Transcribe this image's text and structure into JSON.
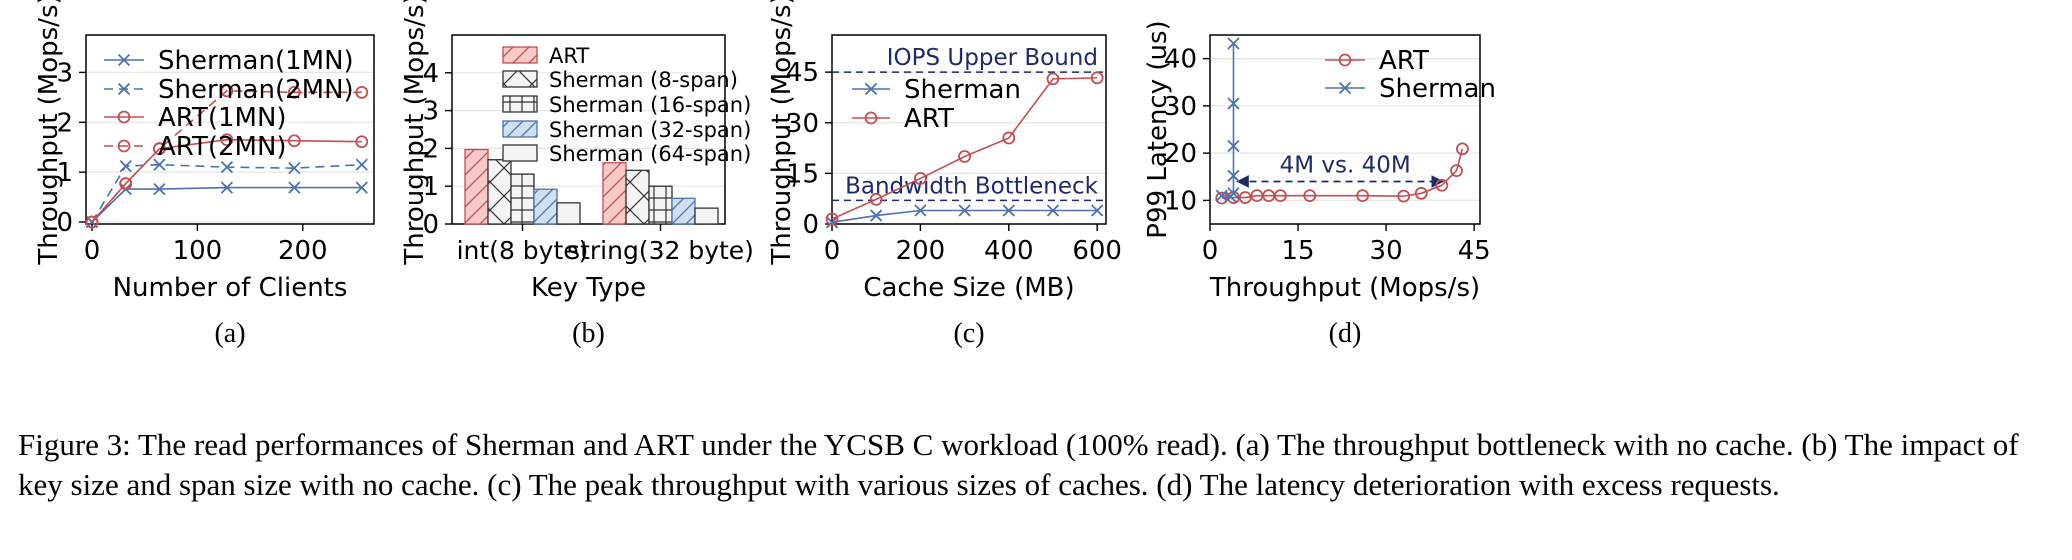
{
  "caption": "Figure 3: The read performances of Sherman and ART under the YCSB C workload (100% read). (a) The throughput bottleneck with no cache. (b) The impact of key size and span size with no cache. (c) The peak throughput with various sizes of caches. (d) The latency deterioration with excess requests.",
  "colors": {
    "blue": "#4C72B0",
    "red": "#C44E52",
    "navy": "#1f2a6b",
    "gridline": "#e6e6e6"
  },
  "chart_data": [
    {
      "id": "a",
      "type": "line",
      "sublabel": "(a)",
      "xlabel": "Number of Clients",
      "ylabel": "Throughput (Mops/s)",
      "xlim": [
        0,
        260
      ],
      "ylim": [
        0,
        3.75
      ],
      "xticks": [
        0,
        100,
        200
      ],
      "yticks": [
        0,
        1,
        2,
        3
      ],
      "legend_position": "top-left",
      "series": [
        {
          "name": "Sherman(1MN)",
          "color": "#4C72B0",
          "dash": false,
          "marker": "x",
          "x": [
            0,
            32,
            64,
            128,
            192,
            256
          ],
          "y": [
            0,
            0.66,
            0.66,
            0.69,
            0.69,
            0.69
          ]
        },
        {
          "name": "Sherman(2MN)",
          "color": "#4C72B0",
          "dash": true,
          "marker": "x",
          "x": [
            0,
            32,
            64,
            128,
            192,
            256
          ],
          "y": [
            0,
            1.12,
            1.15,
            1.1,
            1.08,
            1.15
          ]
        },
        {
          "name": "ART(1MN)",
          "color": "#C44E52",
          "dash": false,
          "marker": "o",
          "x": [
            0,
            32,
            64,
            128,
            192,
            256
          ],
          "y": [
            0,
            0.77,
            1.47,
            1.65,
            1.63,
            1.61
          ]
        },
        {
          "name": "ART(2MN)",
          "color": "#C44E52",
          "dash": true,
          "marker": "o",
          "x": [
            0,
            32,
            64,
            128,
            192,
            256
          ],
          "y": [
            0,
            0.77,
            1.47,
            2.63,
            2.6,
            2.6
          ]
        }
      ]
    },
    {
      "id": "b",
      "type": "bar",
      "sublabel": "(b)",
      "xlabel": "Key Type",
      "ylabel": "Throughput (Mops/s)",
      "ylim": [
        0,
        5
      ],
      "yticks": [
        0,
        1,
        2,
        3,
        4
      ],
      "categories": [
        "int(8 byte)",
        "string(32 byte)"
      ],
      "legend_position": "top-center",
      "series": [
        {
          "name": "ART",
          "fill": "#f6c9c8",
          "stroke": "#c44e52",
          "pattern": "diag",
          "values": [
            1.97,
            1.62
          ]
        },
        {
          "name": "Sherman (8-span)",
          "fill": "#f4f4f4",
          "stroke": "#333333",
          "pattern": "cross",
          "values": [
            1.7,
            1.42
          ]
        },
        {
          "name": "Sherman (16-span)",
          "fill": "#f4f4f4",
          "stroke": "#333333",
          "pattern": "grid",
          "values": [
            1.32,
            1.0
          ]
        },
        {
          "name": "Sherman (32-span)",
          "fill": "#cfe0f0",
          "stroke": "#4C72B0",
          "pattern": "diag",
          "values": [
            0.92,
            0.68
          ]
        },
        {
          "name": "Sherman (64-span)",
          "fill": "#f4f4f4",
          "stroke": "#333333",
          "pattern": "none",
          "values": [
            0.56,
            0.42
          ]
        }
      ]
    },
    {
      "id": "c",
      "type": "line",
      "sublabel": "(c)",
      "xlabel": "Cache Size (MB)",
      "ylabel": "Throughput (Mops/s)",
      "xlim": [
        0,
        620
      ],
      "ylim": [
        0,
        56
      ],
      "xticks": [
        0,
        200,
        400,
        600
      ],
      "yticks": [
        0,
        15,
        30,
        45
      ],
      "legend_position": "upper-left",
      "hlines": [
        {
          "y": 45,
          "label": "IOPS Upper Bound",
          "color": "#1f2a6b"
        },
        {
          "y": 7,
          "label": "Bandwidth Bottleneck",
          "color": "#1f2a6b"
        }
      ],
      "series": [
        {
          "name": "Sherman",
          "color": "#4C72B0",
          "marker": "x",
          "x": [
            0,
            100,
            200,
            300,
            400,
            500,
            600
          ],
          "y": [
            0.5,
            2.5,
            4.0,
            4.0,
            4.0,
            4.0,
            4.0
          ]
        },
        {
          "name": "ART",
          "color": "#C44E52",
          "marker": "o",
          "x": [
            0,
            100,
            200,
            300,
            400,
            500,
            600
          ],
          "y": [
            1.5,
            7.3,
            13.5,
            20.0,
            25.5,
            43.0,
            43.3
          ]
        }
      ]
    },
    {
      "id": "d",
      "type": "line",
      "sublabel": "(d)",
      "xlabel": "Throughput (Mops/s)",
      "ylabel": "P99 Latency (us)",
      "xlim": [
        0,
        46
      ],
      "ylim": [
        5,
        45
      ],
      "xticks": [
        0,
        15,
        30,
        45
      ],
      "yticks": [
        10,
        20,
        30,
        40
      ],
      "legend_position": "top-right",
      "annotation": {
        "text": "4M vs. 40M",
        "x_from": 4,
        "x_to": 40,
        "y": 14,
        "color": "#1f2a6b"
      },
      "series": [
        {
          "name": "ART",
          "color": "#C44E52",
          "marker": "o",
          "x": [
            2,
            4,
            6,
            8,
            10,
            12,
            17,
            26,
            33,
            36,
            39.5,
            42,
            43
          ],
          "y": [
            10.5,
            10.6,
            10.6,
            11,
            11,
            11,
            11,
            11,
            10.9,
            11.5,
            13.2,
            16.3,
            20.9
          ]
        },
        {
          "name": "Sherman",
          "color": "#4C72B0",
          "marker": "x",
          "x": [
            2,
            3.5,
            4,
            4,
            4,
            4,
            4
          ],
          "y": [
            11,
            10.8,
            11.5,
            15.2,
            21.5,
            30.5,
            43.2
          ]
        }
      ]
    }
  ]
}
